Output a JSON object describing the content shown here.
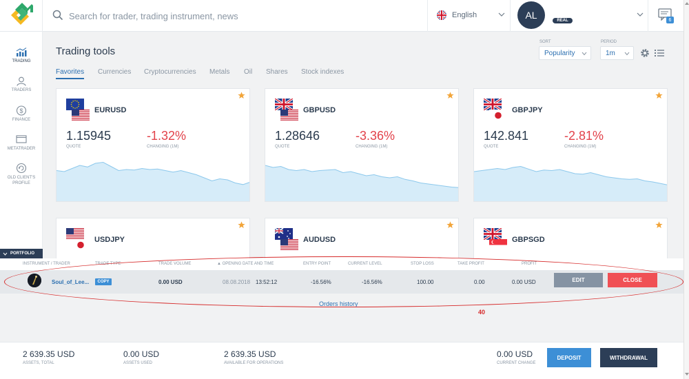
{
  "header": {
    "search_placeholder": "Search for trader, trading instrument, news",
    "language": "English",
    "avatar_initials": "AL",
    "account_type": "REAL",
    "messages_count": "6"
  },
  "sidebar": {
    "items": [
      {
        "label": "TRADING",
        "icon": "chart-icon",
        "active": true
      },
      {
        "label": "TRADERS",
        "icon": "traders-icon"
      },
      {
        "label": "FINANCE",
        "icon": "dollar-icon"
      },
      {
        "label": "METATRADER",
        "icon": "monitor-icon"
      },
      {
        "label": "OLD CLIENT'S",
        "label2": "PROFILE",
        "icon": "refresh-icon"
      }
    ],
    "portfolio_label": "PORTFOLIO"
  },
  "main": {
    "title": "Trading tools",
    "tabs": [
      "Favorites",
      "Currencies",
      "Cryptocurrencies",
      "Metals",
      "Oil",
      "Shares",
      "Stock indexes"
    ],
    "sort": {
      "label": "SORT",
      "value": "Popularity"
    },
    "period": {
      "label": "PERIOD",
      "value": "1m"
    }
  },
  "cards": [
    {
      "symbol": "EURUSD",
      "quote": "1.15945",
      "quote_label": "QUOTE",
      "change": "-1.32%",
      "change_label": "CHANGING (1M)",
      "spark": [
        62,
        60,
        66,
        72,
        69,
        76,
        78,
        70,
        62,
        64,
        63,
        66,
        64,
        65,
        62,
        59,
        62,
        58,
        54,
        48,
        42,
        46,
        44,
        38,
        35,
        40
      ]
    },
    {
      "symbol": "GBPUSD",
      "quote": "1.28646",
      "quote_label": "QUOTE",
      "change": "-3.36%",
      "change_label": "CHANGING (1M)",
      "spark": [
        72,
        68,
        70,
        64,
        62,
        64,
        60,
        62,
        63,
        64,
        58,
        60,
        56,
        52,
        54,
        50,
        48,
        50,
        45,
        42,
        38,
        36,
        34,
        32,
        30,
        29
      ]
    },
    {
      "symbol": "GBPJPY",
      "quote": "142.841",
      "quote_label": "QUOTE",
      "change": "-2.81%",
      "change_label": "CHANGING (1M)",
      "spark": [
        60,
        62,
        64,
        66,
        64,
        68,
        70,
        65,
        60,
        63,
        62,
        64,
        60,
        56,
        55,
        58,
        54,
        50,
        48,
        46,
        45,
        46,
        42,
        40,
        37,
        34
      ]
    },
    {
      "symbol": "USDJPY"
    },
    {
      "symbol": "AUDUSD"
    },
    {
      "symbol": "GBPSGD"
    }
  ],
  "portfolio": {
    "columns": [
      "INSTRUMENT / TRADER",
      "TRADE TYPE",
      "TRADE VOLUME",
      "▲ OPENING DATE AND TIME",
      "ENTRY POINT",
      "CURRENT LEVEL",
      "STOP LOSS",
      "TAKE PROFIT",
      "PROFIT"
    ],
    "row": {
      "trader": "Soul_of_Lee...",
      "type": "COPY",
      "volume": "0.00 USD",
      "date": "08.08.2018",
      "time": "13:52:12",
      "entry": "-16.56%",
      "current": "-16.56%",
      "stop_loss": "100.00",
      "take_profit": "0.00",
      "profit": "0.00 USD",
      "edit_label": "EDIT",
      "close_label": "CLOSE"
    },
    "orders_history": "Orders history",
    "annotation": "40"
  },
  "footer": {
    "assets_total": {
      "value": "2 639.35 USD",
      "label": "ASSETS, TOTAL"
    },
    "assets_used": {
      "value": "0.00 USD",
      "label": "ASSETS USED"
    },
    "available": {
      "value": "2 639.35 USD",
      "label": "AVAILABLE FOR OPERATIONS"
    },
    "current_change": {
      "value": "0.00 USD",
      "label": "CURRENT CHANGE"
    },
    "deposit_label": "DEPOSIT",
    "withdrawal_label": "WITHDRAWAL"
  },
  "colors": {
    "accent": "#2b6fb0",
    "negative": "#e2424a",
    "deposit": "#3d8fd6",
    "withdrawal": "#2c3e57",
    "close": "#f05055",
    "edit": "#8593a3",
    "spark_fill": "#d6ecf9",
    "spark_line": "#8cc8ec"
  }
}
